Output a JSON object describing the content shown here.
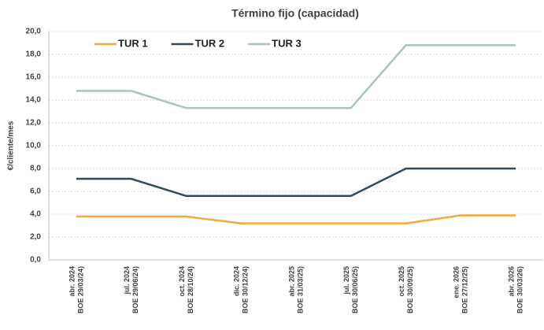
{
  "chart_data": {
    "type": "line",
    "title": "Término fijo (capacidad)",
    "y_label": "€/cliente/mes",
    "categories": [
      [
        "abr. 2024",
        "BOE 29/03/24)"
      ],
      [
        "jul. 2024",
        "BOE 29/06/24)"
      ],
      [
        "oct. 2024",
        "BOE 28/10/24)"
      ],
      [
        "dic. 2024",
        "BOE 30/12/24)"
      ],
      [
        "abr. 2025",
        "BOE 31/03/25)"
      ],
      [
        "jul. 2025",
        "BOE 30/06/25)"
      ],
      [
        "oct. 2025",
        "BOE 30/09/25)"
      ],
      [
        "ene. 2026",
        "BOE 27/12/25)"
      ],
      [
        "abr. 2026",
        "BOE 30/03/26)"
      ]
    ],
    "series": [
      {
        "name": "TUR 1",
        "color": "#f2a93b",
        "values": [
          3.8,
          3.8,
          3.8,
          3.2,
          3.2,
          3.2,
          3.2,
          3.9,
          3.9
        ]
      },
      {
        "name": "TUR 2",
        "color": "#2f4b63",
        "values": [
          7.1,
          7.1,
          5.6,
          5.6,
          5.6,
          5.6,
          8.0,
          8.0,
          8.0
        ]
      },
      {
        "name": "TUR 3",
        "color": "#a8c5b8",
        "values": [
          14.8,
          14.8,
          13.3,
          13.3,
          13.3,
          13.3,
          18.8,
          18.8,
          18.8
        ]
      }
    ],
    "ylim": [
      0,
      20
    ],
    "yticks": [
      {
        "value": 0,
        "label": "0,0"
      },
      {
        "value": 2,
        "label": "2,0"
      },
      {
        "value": 4,
        "label": "4,0"
      },
      {
        "value": 6,
        "label": "6,0"
      },
      {
        "value": 8,
        "label": "8,0"
      },
      {
        "value": 10,
        "label": "10,0"
      },
      {
        "value": 12,
        "label": "12,0"
      },
      {
        "value": 14,
        "label": "14,0"
      },
      {
        "value": 16,
        "label": "16,0"
      },
      {
        "value": 18,
        "label": "18,0"
      },
      {
        "value": 20,
        "label": "20,0"
      }
    ],
    "grid": true,
    "legend": "top-left"
  }
}
